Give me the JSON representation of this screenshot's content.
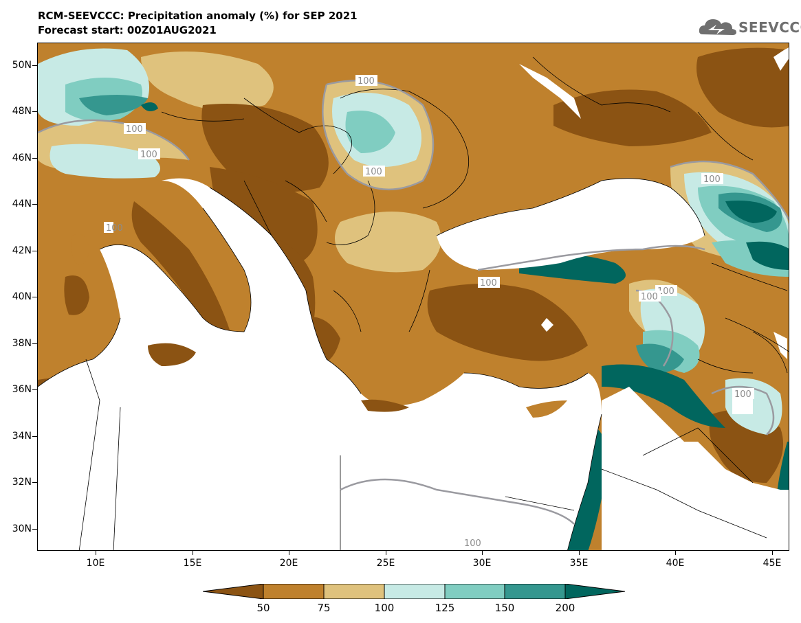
{
  "header": {
    "title_line1": "RCM-SEEVCCC: Precipitation anomaly (%) for SEP 2021",
    "title_line2": "Forecast start: 00Z01AUG2021",
    "logo_text": "SEEVCCC"
  },
  "map": {
    "latitude_labels": [
      "50N",
      "48N",
      "46N",
      "44N",
      "42N",
      "40N",
      "38N",
      "36N",
      "34N",
      "32N",
      "30N"
    ],
    "longitude_labels": [
      "10E",
      "15E",
      "20E",
      "25E",
      "30E",
      "35E",
      "40E",
      "45E"
    ],
    "contour_labels": [
      "100",
      "100",
      "100",
      "100",
      "100",
      "100",
      "100",
      "100",
      "100",
      "100",
      "100"
    ],
    "colors": {
      "dark_brown": "#8b5313",
      "brown": "#bf812d",
      "tan": "#dfc27d",
      "light_teal": "#c7eae5",
      "teal": "#80cdc1",
      "dark_teal": "#35978f",
      "deepest_teal": "#01665e",
      "contour_100_line": "#9a9aa0",
      "sea": "#ffffff"
    }
  },
  "colorbar": {
    "labels": [
      "50",
      "75",
      "100",
      "125",
      "150",
      "200"
    ],
    "colors": [
      "#8b5313",
      "#bf812d",
      "#dfc27d",
      "#c7eae5",
      "#80cdc1",
      "#35978f",
      "#01665e"
    ]
  }
}
